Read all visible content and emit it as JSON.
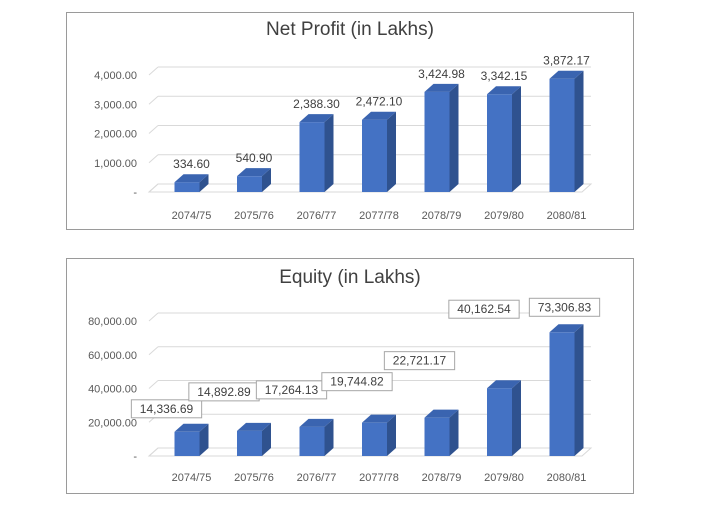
{
  "chart_data": [
    {
      "type": "bar",
      "title": "Net Profit (in Lakhs)",
      "categories": [
        "2074/75",
        "2075/76",
        "2076/77",
        "2077/78",
        "2078/79",
        "2079/80",
        "2080/81"
      ],
      "values": [
        334.6,
        540.9,
        2388.3,
        2472.1,
        3424.98,
        3342.15,
        3872.17
      ],
      "data_labels": [
        "334.60",
        "540.90",
        "2,388.30",
        "2,472.10",
        "3,424.98",
        "3,342.15",
        "3,872.17"
      ],
      "ytick_labels": [
        "-",
        "1,000.00",
        "2,000.00",
        "3,000.00",
        "4,000.00"
      ],
      "ytick_values": [
        0,
        1000,
        2000,
        3000,
        4000
      ],
      "ylim": [
        0,
        4000
      ],
      "grid": true,
      "legend": "none",
      "style": "3d-column",
      "color": "#4472C4"
    },
    {
      "type": "bar",
      "title": "Equity (in Lakhs)",
      "categories": [
        "2074/75",
        "2075/76",
        "2076/77",
        "2077/78",
        "2078/79",
        "2079/80",
        "2080/81"
      ],
      "values": [
        14336.69,
        14892.89,
        17264.13,
        19744.82,
        22721.17,
        40162.54,
        73306.83
      ],
      "data_labels": [
        "14,336.69",
        "14,892.89",
        "17,264.13",
        "19,744.82",
        "22,721.17",
        "40,162.54",
        "73,306.83"
      ],
      "ytick_labels": [
        "-",
        "20,000.00",
        "40,000.00",
        "60,000.00",
        "80,000.00"
      ],
      "ytick_values": [
        0,
        20000,
        40000,
        60000,
        80000
      ],
      "ylim": [
        0,
        80000
      ],
      "grid": true,
      "legend": "none",
      "style": "3d-column",
      "color": "#4472C4"
    }
  ]
}
